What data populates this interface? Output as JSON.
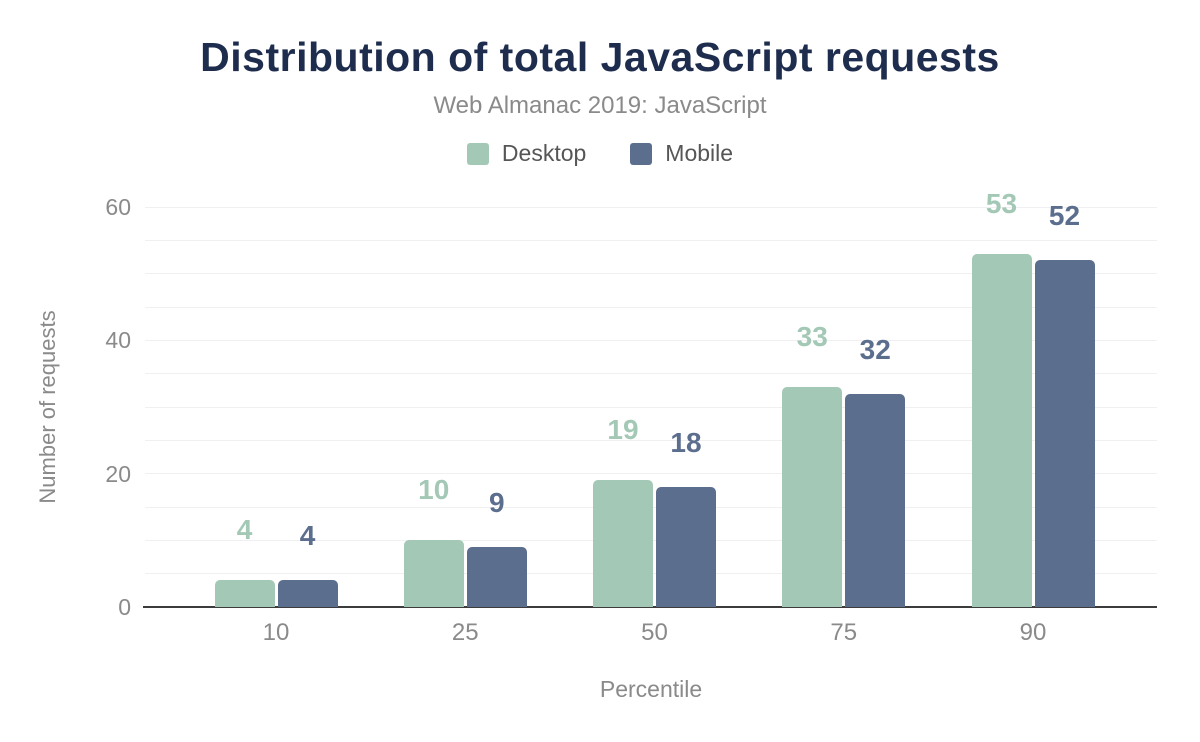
{
  "chart_data": {
    "type": "bar",
    "title": "Distribution of total JavaScript requests",
    "subtitle": "Web Almanac 2019: JavaScript",
    "xlabel": "Percentile",
    "ylabel": "Number of requests",
    "categories": [
      "10",
      "25",
      "50",
      "75",
      "90"
    ],
    "series": [
      {
        "name": "Desktop",
        "color": "#a4c8b6",
        "values": [
          4,
          10,
          19,
          33,
          53
        ]
      },
      {
        "name": "Mobile",
        "color": "#5c6e8e",
        "values": [
          4,
          9,
          18,
          32,
          52
        ]
      }
    ],
    "ylim": [
      0,
      60
    ],
    "yticks": [
      0,
      20,
      40,
      60
    ],
    "grid_step": 5,
    "grid": "on",
    "legend_position": "top",
    "bar_value_labels": true
  },
  "colors": {
    "background": "#ffffff",
    "title": "#1e2d4e",
    "subtitle": "#8a8a8a",
    "legend_text": "#565656",
    "axis_text": "#8a8a8a",
    "gridline": "#f0f0f2",
    "axis_line": "#3c3c3c"
  }
}
